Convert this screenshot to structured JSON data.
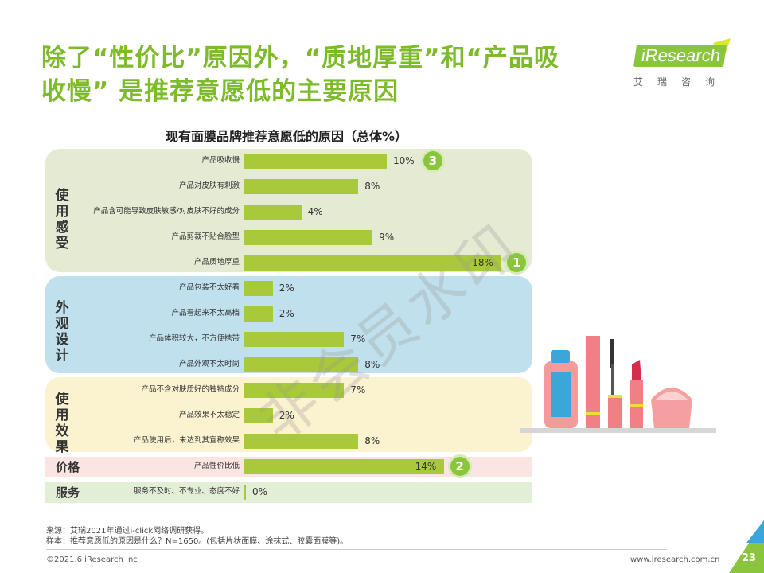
{
  "header": {
    "title_line1": "除了“性价比”原因外，“质地厚重”和“产品吸",
    "title_line2": "收慢” 是推荐意愿低的主要原因",
    "logo_text": "iResearch",
    "logo_sub": "艾瑞咨询"
  },
  "watermark": "非会员水印",
  "colors": {
    "title": "#7dbb2a",
    "bar": "#a8c93a",
    "usage_feel": "#e5ead3",
    "appearance": "#bfe0ec",
    "usage_effect": "#fbf2cf",
    "price": "#fbe5e3",
    "service": "#e3eed7"
  },
  "chart_data": {
    "type": "bar",
    "orientation": "horizontal",
    "title": "现有面膜品牌推荐意愿低的原因（总体%）",
    "unit": "%",
    "groups": [
      {
        "name": "使用感受",
        "categories": [
          "产品吸收慢",
          "产品对皮肤有刺激",
          "产品含可能导致皮肤敏感/对皮肤不好的成分",
          "产品剪裁不贴合脸型",
          "产品质地厚重"
        ],
        "values": [
          10,
          8,
          4,
          9,
          18
        ]
      },
      {
        "name": "外观设计",
        "categories": [
          "产品包装不太好看",
          "产品看起来不太高档",
          "产品体积较大，不方便携带",
          "产品外观不太时尚"
        ],
        "values": [
          2,
          2,
          7,
          8
        ]
      },
      {
        "name": "使用效果",
        "categories": [
          "产品不含对肤质好的独特成分",
          "产品效果不太稳定",
          "产品使用后，未达到其宣称效果"
        ],
        "values": [
          7,
          2,
          8
        ]
      },
      {
        "name": "价格",
        "categories": [
          "产品性价比低"
        ],
        "values": [
          14
        ]
      },
      {
        "name": "服务",
        "categories": [
          "服务不及时、不专业、态度不好"
        ],
        "values": [
          0
        ]
      }
    ],
    "value_labels": [
      "10%",
      "8%",
      "4%",
      "9%",
      "18%",
      "2%",
      "2%",
      "7%",
      "8%",
      "7%",
      "2%",
      "8%",
      "14%",
      "0%"
    ],
    "rank_badges": [
      {
        "category": "产品质地厚重",
        "rank": "1"
      },
      {
        "category": "产品性价比低",
        "rank": "2"
      },
      {
        "category": "产品吸收慢",
        "rank": "3"
      }
    ]
  },
  "footer": {
    "source": "来源：艾瑞2021年通过i-click网络调研获得。",
    "sample": "样本：推荐意愿低的原因是什么？N=1650。(包括片状面膜、涂抹式、胶囊面膜等)。",
    "copyright": "©2021.6 iResearch Inc",
    "url": "www.iresearch.com.cn",
    "page": "23"
  }
}
